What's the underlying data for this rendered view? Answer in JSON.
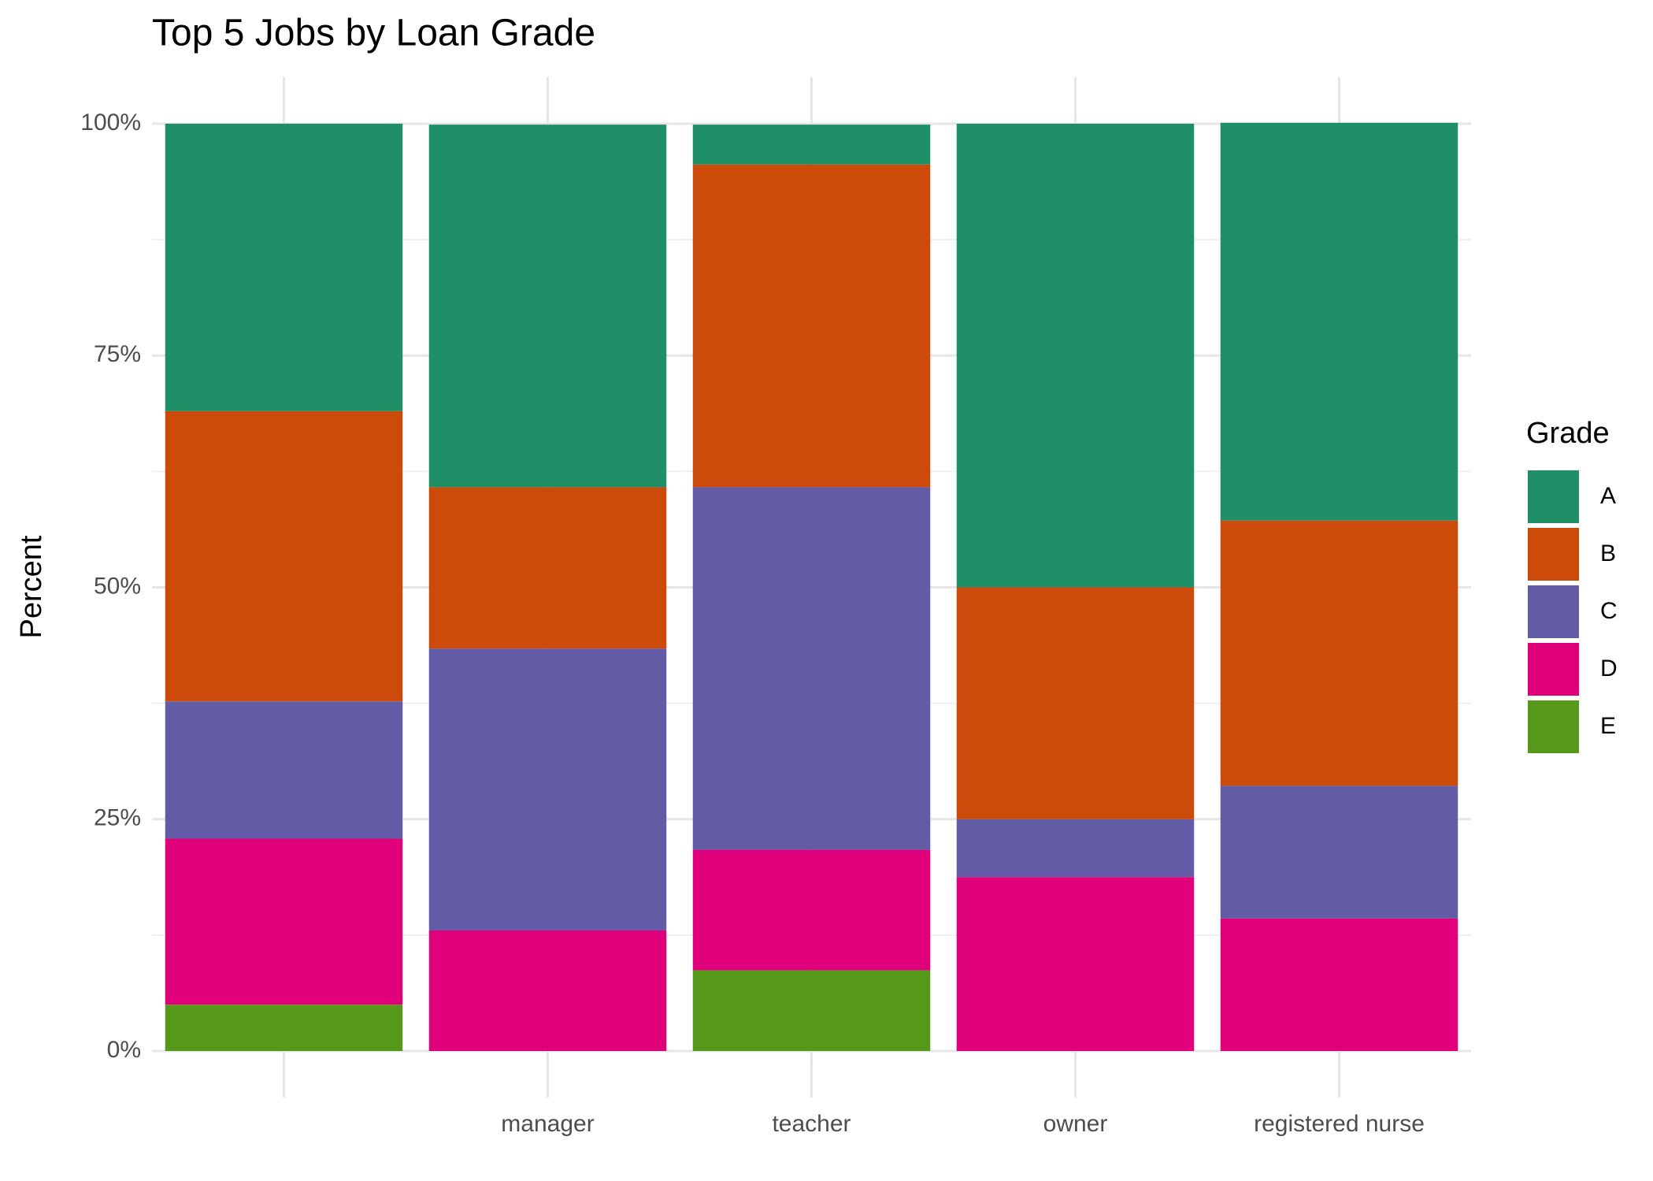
{
  "chart_data": {
    "type": "stacked_bar",
    "title": "Top 5 Jobs by Loan Grade",
    "y_label": "Percent",
    "categories": [
      null,
      "manager",
      "teacher",
      "owner",
      "registered nurse"
    ],
    "legend_title": "Grade",
    "legend": "right",
    "series": [
      {
        "name": "A",
        "color": "#1e8f67",
        "values": [
          31.0,
          39.1,
          4.3,
          50,
          42.9
        ]
      },
      {
        "name": "B",
        "color": "#cc4a0a",
        "values": [
          31.3,
          17.4,
          34.8,
          25,
          28.6
        ]
      },
      {
        "name": "C",
        "color": "#615ca5",
        "values": [
          14.8,
          30.4,
          39.1,
          6.25,
          14.3
        ]
      },
      {
        "name": "D",
        "color": "#e0007a",
        "values": [
          17.9,
          13.0,
          13.0,
          18.75,
          14.3
        ]
      },
      {
        "name": "E",
        "color": "#56981a",
        "values": [
          5,
          0,
          8.7,
          0,
          0
        ]
      }
    ],
    "ylim": [
      0,
      100
    ],
    "yticks": [
      {
        "value": 0,
        "label": "0%"
      },
      {
        "value": 25,
        "label": "25%"
      },
      {
        "value": 50,
        "label": "50%"
      },
      {
        "value": 75,
        "label": "75%"
      },
      {
        "value": 100,
        "label": "100%"
      }
    ],
    "grid": true
  }
}
